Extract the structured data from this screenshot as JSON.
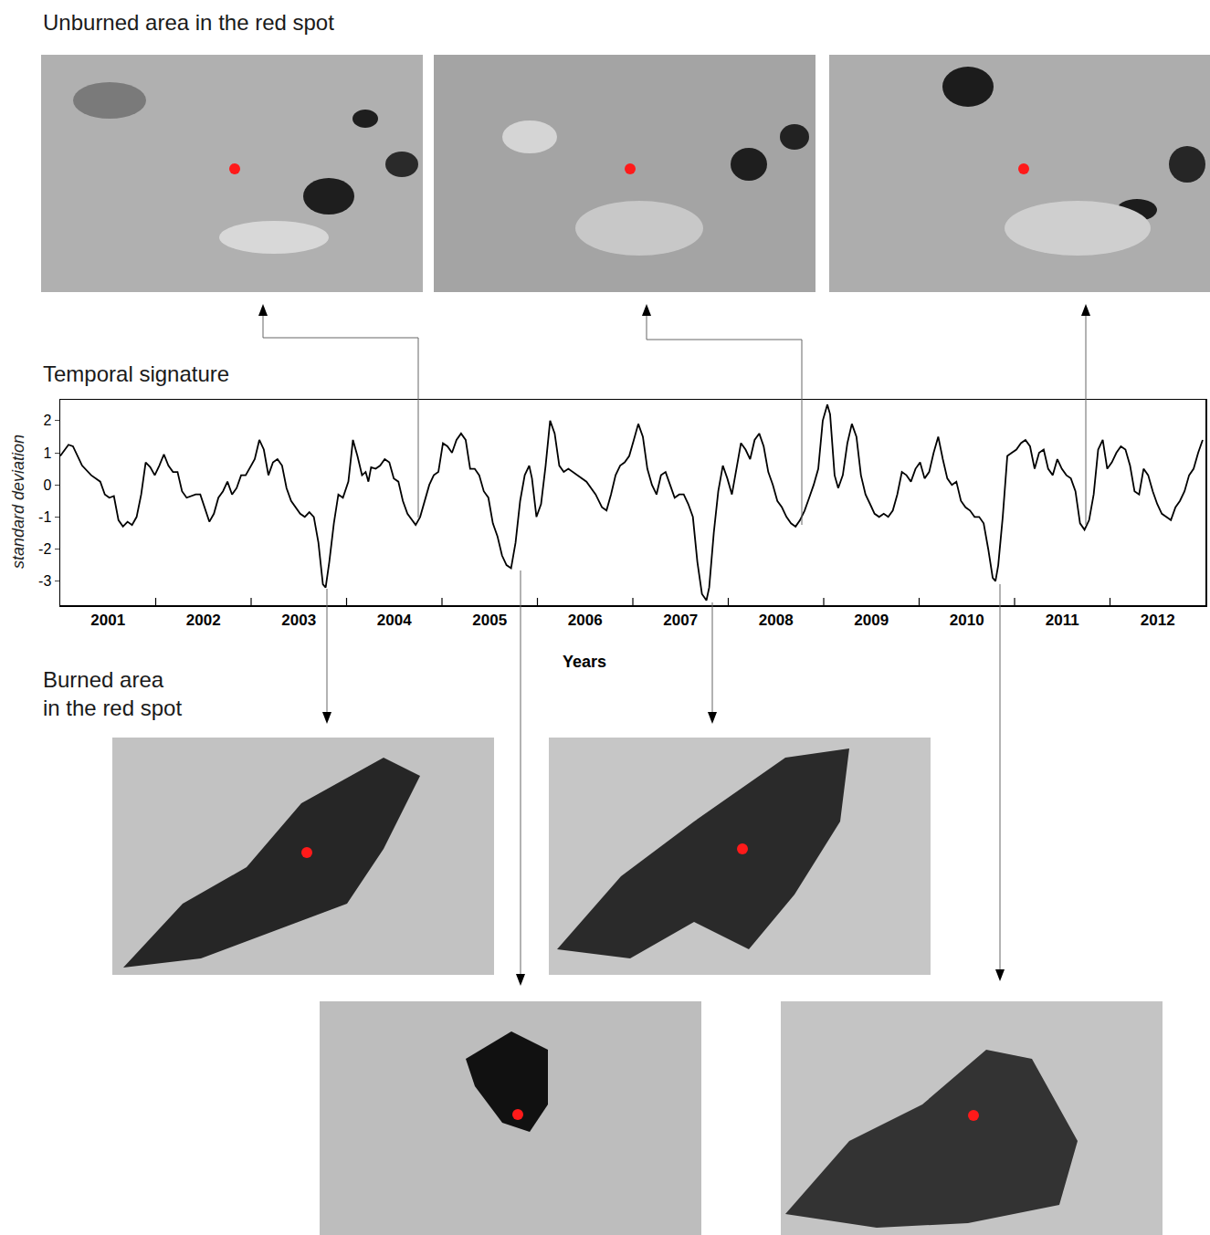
{
  "panels": {
    "top_label": "Unburned area in the red spot",
    "bottom_label": "Burned area\nin the red spot"
  },
  "chart_data": {
    "type": "line",
    "title": "Temporal signature",
    "x_label": "Years",
    "y_label": "standard deviation",
    "color": "#000000",
    "grid": false,
    "xlim": [
      2001,
      2013
    ],
    "ylim": [
      -3.75,
      2.65
    ],
    "xticks": [
      {
        "value": 2001.5,
        "label": "2001"
      },
      {
        "value": 2002.5,
        "label": "2002"
      },
      {
        "value": 2003.5,
        "label": "2003"
      },
      {
        "value": 2004.5,
        "label": "2004"
      },
      {
        "value": 2005.5,
        "label": "2005"
      },
      {
        "value": 2006.5,
        "label": "2006"
      },
      {
        "value": 2007.5,
        "label": "2007"
      },
      {
        "value": 2008.5,
        "label": "2008"
      },
      {
        "value": 2009.5,
        "label": "2009"
      },
      {
        "value": 2010.5,
        "label": "2010"
      },
      {
        "value": 2011.5,
        "label": "2011"
      },
      {
        "value": 2012.5,
        "label": "2012"
      }
    ],
    "yticks": [
      -3,
      -2,
      -1,
      0,
      1,
      2
    ],
    "x": [
      2001.0,
      2001.086,
      2001.133,
      2001.229,
      2001.324,
      2001.419,
      2001.467,
      2001.514,
      2001.562,
      2001.61,
      2001.657,
      2001.705,
      2001.752,
      2001.8,
      2001.848,
      2001.895,
      2001.943,
      2001.99,
      2002.038,
      2002.086,
      2002.133,
      2002.181,
      2002.229,
      2002.276,
      2002.324,
      2002.419,
      2002.467,
      2002.514,
      2002.562,
      2002.61,
      2002.657,
      2002.705,
      2002.752,
      2002.8,
      2002.848,
      2002.895,
      2002.943,
      2003.038,
      2003.086,
      2003.133,
      2003.181,
      2003.229,
      2003.276,
      2003.324,
      2003.371,
      2003.419,
      2003.467,
      2003.514,
      2003.562,
      2003.61,
      2003.657,
      2003.705,
      2003.752,
      2003.781,
      2003.819,
      2003.867,
      2003.914,
      2003.962,
      2004.019,
      2004.067,
      2004.114,
      2004.162,
      2004.2,
      2004.229,
      2004.257,
      2004.305,
      2004.352,
      2004.4,
      2004.448,
      2004.495,
      2004.543,
      2004.59,
      2004.638,
      2004.686,
      2004.724,
      2004.771,
      2004.819,
      2004.867,
      2004.914,
      2004.962,
      2005.01,
      2005.057,
      2005.105,
      2005.152,
      2005.2,
      2005.248,
      2005.295,
      2005.343,
      2005.39,
      2005.438,
      2005.486,
      2005.533,
      2005.581,
      2005.629,
      2005.676,
      2005.724,
      2005.771,
      2005.819,
      2005.867,
      2005.914,
      2005.943,
      2005.99,
      2006.038,
      2006.086,
      2006.133,
      2006.181,
      2006.229,
      2006.276,
      2006.324,
      2006.419,
      2006.514,
      2006.61,
      2006.676,
      2006.724,
      2006.771,
      2006.819,
      2006.867,
      2006.914,
      2006.962,
      2007.01,
      2007.057,
      2007.105,
      2007.152,
      2007.2,
      2007.248,
      2007.295,
      2007.343,
      2007.39,
      2007.438,
      2007.486,
      2007.533,
      2007.581,
      2007.629,
      2007.676,
      2007.724,
      2007.771,
      2007.8,
      2007.848,
      2007.895,
      2007.943,
      2007.99,
      2008.038,
      2008.086,
      2008.133,
      2008.181,
      2008.229,
      2008.276,
      2008.324,
      2008.371,
      2008.419,
      2008.467,
      2008.514,
      2008.562,
      2008.61,
      2008.657,
      2008.705,
      2008.752,
      2008.8,
      2008.848,
      2008.895,
      2008.943,
      2008.99,
      2009.038,
      2009.067,
      2009.114,
      2009.152,
      2009.2,
      2009.248,
      2009.295,
      2009.343,
      2009.39,
      2009.438,
      2009.486,
      2009.533,
      2009.581,
      2009.629,
      2009.676,
      2009.724,
      2009.771,
      2009.819,
      2009.867,
      2009.914,
      2009.962,
      2010.01,
      2010.057,
      2010.105,
      2010.152,
      2010.2,
      2010.248,
      2010.295,
      2010.343,
      2010.39,
      2010.438,
      2010.486,
      2010.533,
      2010.581,
      2010.629,
      2010.676,
      2010.724,
      2010.771,
      2010.8,
      2010.829,
      2010.876,
      2010.924,
      2010.971,
      2011.019,
      2011.067,
      2011.114,
      2011.162,
      2011.21,
      2011.257,
      2011.305,
      2011.352,
      2011.4,
      2011.448,
      2011.495,
      2011.543,
      2011.59,
      2011.638,
      2011.686,
      2011.733,
      2011.781,
      2011.829,
      2011.876,
      2011.924,
      2011.971,
      2012.019,
      2012.067,
      2012.114,
      2012.162,
      2012.21,
      2012.257,
      2012.305,
      2012.352,
      2012.4,
      2012.448,
      2012.495,
      2012.543,
      2012.59,
      2012.638,
      2012.686,
      2012.733,
      2012.781,
      2012.829,
      2012.876,
      2012.924,
      2012.971
    ],
    "values": [
      0.9,
      1.25,
      1.2,
      0.6,
      0.3,
      0.1,
      -0.3,
      -0.4,
      -0.35,
      -1.1,
      -1.3,
      -1.15,
      -1.25,
      -1.0,
      -0.3,
      0.7,
      0.55,
      0.3,
      0.6,
      0.95,
      0.6,
      0.4,
      0.4,
      -0.2,
      -0.4,
      -0.3,
      -0.3,
      -0.7,
      -1.15,
      -0.9,
      -0.4,
      -0.2,
      0.1,
      -0.3,
      -0.1,
      0.3,
      0.3,
      0.8,
      1.4,
      1.1,
      0.3,
      0.7,
      0.8,
      0.6,
      -0.1,
      -0.5,
      -0.7,
      -0.9,
      -1.0,
      -0.85,
      -1.0,
      -1.8,
      -3.1,
      -3.2,
      -2.4,
      -1.2,
      -0.3,
      -0.4,
      0.1,
      1.4,
      0.9,
      0.3,
      0.4,
      0.1,
      0.55,
      0.5,
      0.6,
      0.8,
      0.7,
      0.2,
      0.1,
      -0.5,
      -0.9,
      -1.1,
      -1.25,
      -1.0,
      -0.5,
      0.0,
      0.3,
      0.4,
      1.3,
      1.2,
      1.0,
      1.4,
      1.6,
      1.4,
      0.5,
      0.5,
      0.3,
      -0.2,
      -0.4,
      -1.2,
      -1.6,
      -2.2,
      -2.5,
      -2.6,
      -1.8,
      -0.5,
      0.3,
      0.6,
      0.2,
      -1.0,
      -0.6,
      0.6,
      2.0,
      1.6,
      0.6,
      0.4,
      0.5,
      0.3,
      0.1,
      -0.3,
      -0.7,
      -0.8,
      -0.3,
      0.3,
      0.6,
      0.7,
      0.9,
      1.4,
      1.9,
      1.5,
      0.5,
      0.0,
      -0.3,
      0.3,
      0.4,
      0.0,
      -0.4,
      -0.3,
      -0.3,
      -0.6,
      -1.0,
      -2.4,
      -3.4,
      -3.6,
      -3.2,
      -1.5,
      -0.2,
      0.6,
      0.2,
      -0.3,
      0.5,
      1.3,
      1.1,
      0.8,
      1.4,
      1.6,
      1.2,
      0.4,
      0.0,
      -0.5,
      -0.7,
      -1.0,
      -1.2,
      -1.3,
      -1.1,
      -0.8,
      -0.4,
      0.0,
      0.5,
      2.0,
      2.5,
      2.2,
      0.3,
      -0.1,
      0.3,
      1.3,
      1.9,
      1.5,
      0.3,
      -0.3,
      -0.6,
      -0.9,
      -1.0,
      -0.9,
      -1.0,
      -0.8,
      -0.3,
      0.4,
      0.3,
      0.1,
      0.5,
      0.7,
      0.2,
      0.4,
      1.0,
      1.5,
      0.8,
      0.2,
      0.0,
      0.1,
      -0.5,
      -0.7,
      -0.8,
      -1.0,
      -1.0,
      -1.2,
      -2.0,
      -2.9,
      -3.0,
      -2.5,
      -1.0,
      0.9,
      1.0,
      1.1,
      1.3,
      1.4,
      1.2,
      0.5,
      1.0,
      1.1,
      0.5,
      0.3,
      0.8,
      0.5,
      0.3,
      0.2,
      -0.2,
      -1.2,
      -1.4,
      -1.1,
      -0.3,
      1.1,
      1.4,
      0.5,
      0.7,
      1.0,
      1.2,
      1.1,
      0.6,
      -0.2,
      -0.3,
      0.5,
      0.3,
      -0.2,
      -0.6,
      -0.9,
      -1.0,
      -1.1,
      -0.7,
      -0.5,
      -0.2,
      0.3,
      0.5,
      1.0,
      1.4
    ]
  }
}
